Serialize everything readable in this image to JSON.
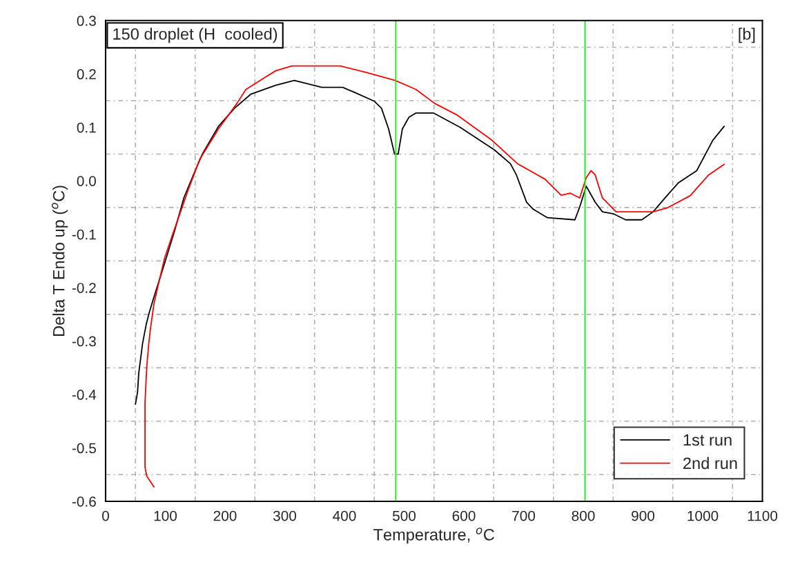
{
  "chart_data": {
    "type": "line",
    "xlabel": "Temperature, $^{o}$C",
    "ylabel": "Delta T Endo up ($^{o}$C)",
    "annotations": [
      "150 droplet (H  cooled)",
      "[b]"
    ],
    "series": [
      {
        "name": "1st run",
        "color": "#000000",
        "x": [
          50,
          53.5,
          55.5,
          59,
          62,
          68,
          73,
          80,
          100,
          116,
          131,
          150,
          162,
          189,
          216,
          243,
          285,
          316,
          362,
          397,
          420,
          450,
          462,
          474,
          484,
          490,
          497,
          508,
          520,
          549,
          594,
          651,
          678,
          688,
          705,
          716,
          740,
          786,
          794,
          805,
          820,
          832,
          851,
          871,
          898,
          917,
          940,
          959,
          990,
          1017,
          1036
        ],
        "values": [
          -0.418,
          -0.396,
          -0.36,
          -0.33,
          -0.304,
          -0.269,
          -0.247,
          -0.221,
          -0.15,
          -0.092,
          -0.032,
          0.019,
          0.05,
          0.102,
          0.136,
          0.162,
          0.179,
          0.188,
          0.175,
          0.175,
          0.164,
          0.149,
          0.136,
          0.097,
          0.05,
          0.05,
          0.097,
          0.119,
          0.127,
          0.127,
          0.1,
          0.058,
          0.032,
          0.011,
          -0.04,
          -0.053,
          -0.069,
          -0.073,
          -0.049,
          -0.01,
          -0.04,
          -0.058,
          -0.062,
          -0.073,
          -0.073,
          -0.058,
          -0.028,
          -0.004,
          0.019,
          0.076,
          0.102
        ]
      },
      {
        "name": "2nd run",
        "color": "#ff0000",
        "x": [
          81,
          69,
          66,
          66,
          69,
          72,
          75,
          81,
          89,
          99,
          112,
          139,
          158,
          189,
          220,
          235,
          266,
          285,
          312,
          393,
          436,
          485,
          520,
          551,
          589,
          647,
          690,
          736,
          763,
          778,
          794,
          805,
          813,
          820,
          832,
          855,
          917,
          940,
          979,
          1010,
          1036
        ],
        "values": [
          -0.573,
          -0.553,
          -0.536,
          -0.415,
          -0.347,
          -0.308,
          -0.278,
          -0.23,
          -0.191,
          -0.144,
          -0.101,
          -0.015,
          0.041,
          0.097,
          0.145,
          0.171,
          0.193,
          0.206,
          0.215,
          0.215,
          0.203,
          0.188,
          0.171,
          0.145,
          0.123,
          0.076,
          0.032,
          0.003,
          -0.027,
          -0.023,
          -0.032,
          0.006,
          0.019,
          0.011,
          -0.032,
          -0.058,
          -0.058,
          -0.051,
          -0.028,
          0.011,
          0.031
        ]
      }
    ],
    "ref_lines": [
      {
        "axis": "x",
        "value": 486,
        "color": "#00ff00"
      },
      {
        "axis": "x",
        "value": 803,
        "color": "#00ff00"
      }
    ],
    "xlim": [
      0,
      1100
    ],
    "xticks": [
      0,
      100,
      200,
      300,
      400,
      500,
      600,
      700,
      800,
      900,
      1000,
      1100
    ],
    "ylim": [
      -0.6,
      0.3
    ],
    "yticks": [
      -0.6,
      -0.5,
      -0.4,
      -0.3,
      -0.2,
      -0.1,
      {
        "value": 0,
        "label": "0.0"
      },
      0.1,
      0.2,
      0.3
    ],
    "grid": true,
    "legend": "bottom right",
    "marker": "none",
    "line_style": "solid"
  }
}
